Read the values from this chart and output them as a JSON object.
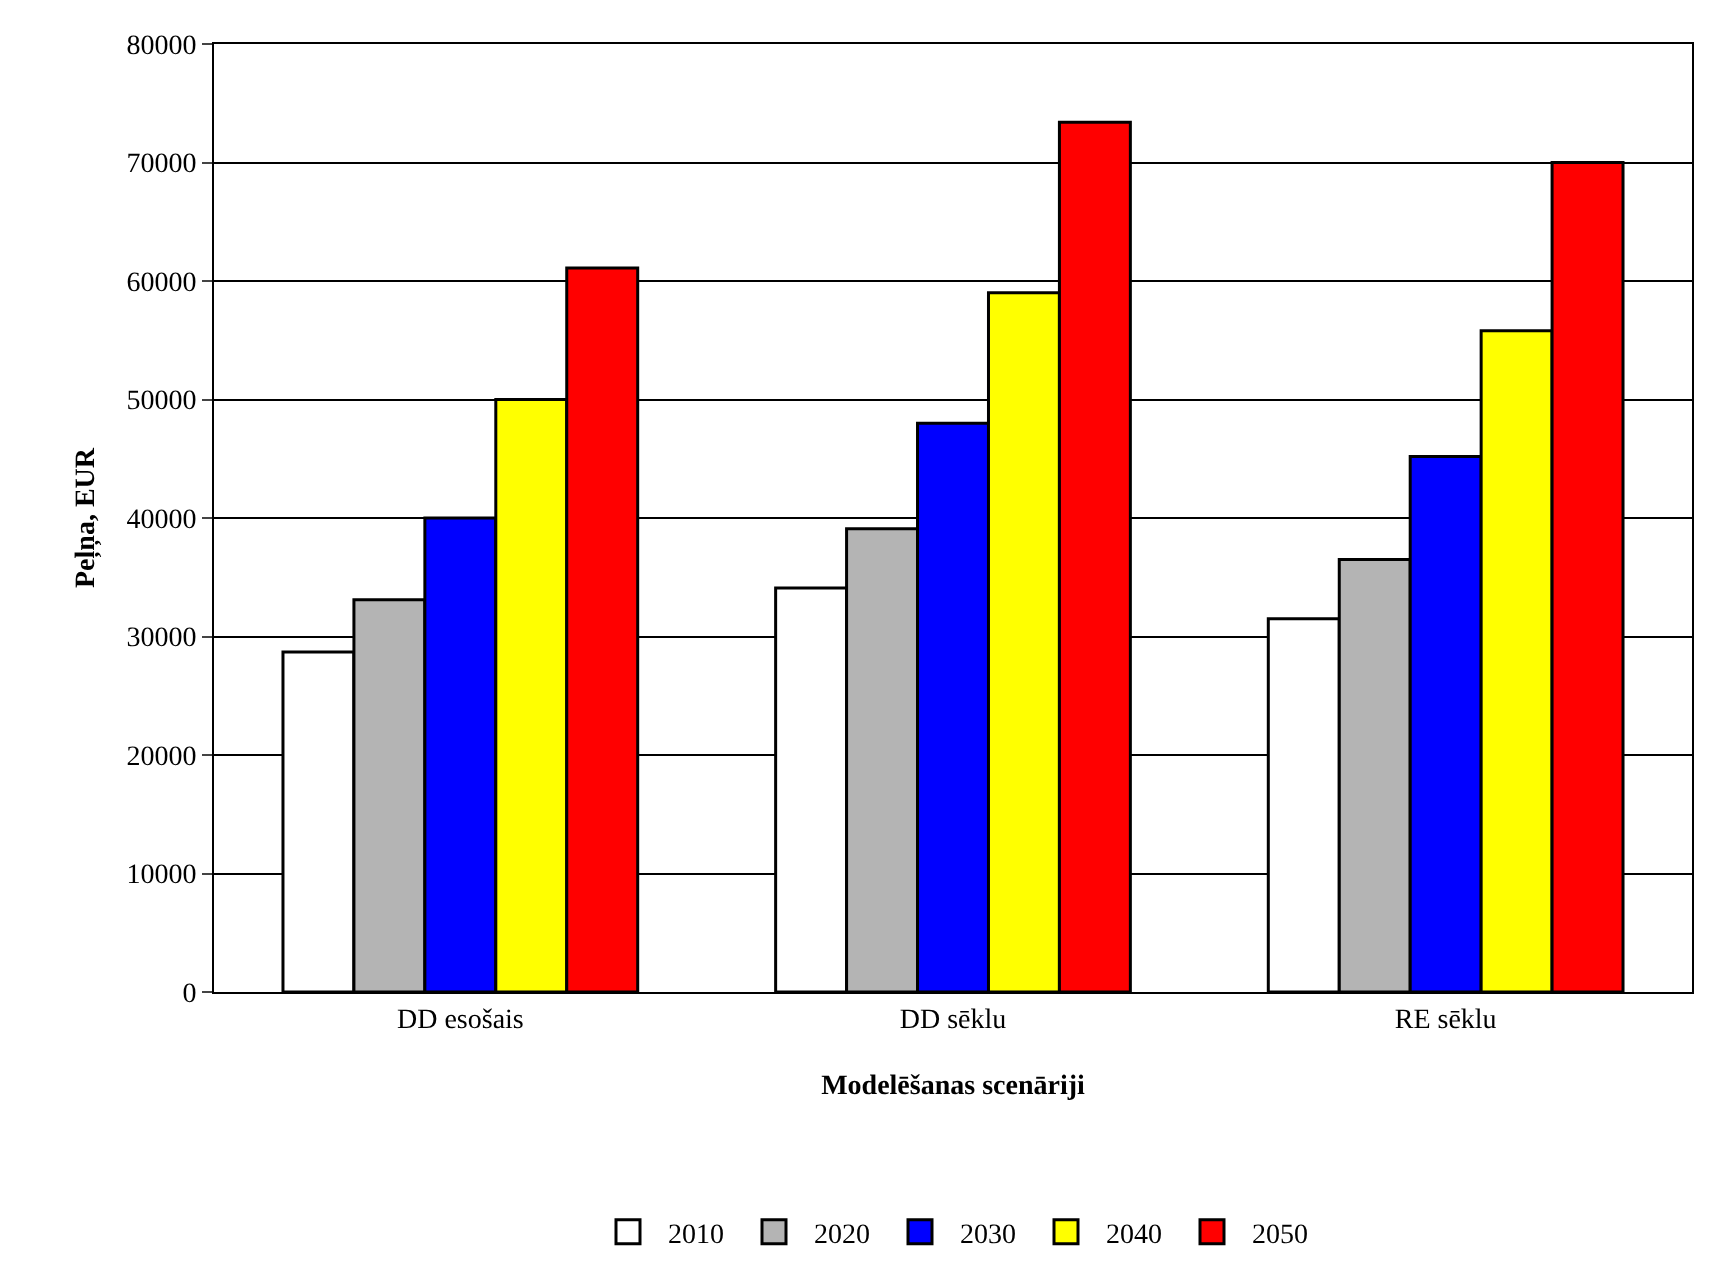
{
  "chart_data": {
    "type": "bar",
    "xlabel": "Modelēšanas scenāriji",
    "ylabel": "Peļņa, EUR",
    "categories": [
      "DD esošais",
      "DD sēklu",
      "RE sēklu"
    ],
    "series": [
      {
        "name": "2010",
        "color": "#ffffff",
        "values": [
          28700,
          34100,
          31500
        ]
      },
      {
        "name": "2020",
        "color": "#b4b4b4",
        "values": [
          33100,
          39100,
          36500
        ]
      },
      {
        "name": "2030",
        "color": "#0000ff",
        "values": [
          40000,
          48000,
          45200
        ]
      },
      {
        "name": "2040",
        "color": "#ffff00",
        "values": [
          50000,
          59000,
          55800
        ]
      },
      {
        "name": "2050",
        "color": "#ff0000",
        "values": [
          61100,
          73400,
          70000
        ]
      }
    ],
    "ylim": [
      0,
      80000
    ],
    "yticks": [
      0,
      10000,
      20000,
      30000,
      40000,
      50000,
      60000,
      70000,
      80000
    ],
    "grid": "y",
    "legend": "bottom"
  }
}
